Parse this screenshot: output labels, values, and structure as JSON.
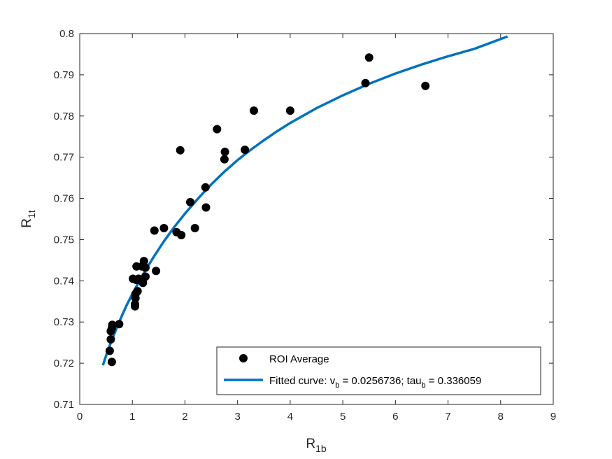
{
  "chart_data": {
    "type": "scatter",
    "title": "",
    "xlabel": {
      "main": "R",
      "sub": "1b"
    },
    "ylabel": {
      "main": "R",
      "sub": "1t"
    },
    "xlim": [
      0,
      9
    ],
    "ylim": [
      0.71,
      0.8
    ],
    "xticks": [
      0,
      1,
      2,
      3,
      4,
      5,
      6,
      7,
      8,
      9
    ],
    "xtick_labels": [
      "0",
      "1",
      "2",
      "3",
      "4",
      "5",
      "6",
      "7",
      "8",
      "9"
    ],
    "yticks": [
      0.71,
      0.72,
      0.73,
      0.74,
      0.75,
      0.76,
      0.77,
      0.78,
      0.79,
      0.8
    ],
    "ytick_labels": [
      "0.71",
      "0.72",
      "0.73",
      "0.74",
      "0.75",
      "0.76",
      "0.77",
      "0.78",
      "0.79",
      "0.8"
    ],
    "grid": false,
    "legend_position": "bottom-right",
    "colors": {
      "points": "#000000",
      "curve": "#0072BD",
      "axes": "#262626"
    },
    "series": [
      {
        "name": "ROI Average",
        "kind": "points",
        "points": [
          [
            0.57,
            0.723
          ],
          [
            0.59,
            0.7258
          ],
          [
            0.59,
            0.7278
          ],
          [
            0.61,
            0.7203
          ],
          [
            0.61,
            0.7285
          ],
          [
            0.62,
            0.7293
          ],
          [
            0.75,
            0.7295
          ],
          [
            1.01,
            0.7405
          ],
          [
            1.05,
            0.7338
          ],
          [
            1.05,
            0.7343
          ],
          [
            1.06,
            0.7358
          ],
          [
            1.06,
            0.7368
          ],
          [
            1.08,
            0.7435
          ],
          [
            1.08,
            0.7402
          ],
          [
            1.1,
            0.7375
          ],
          [
            1.12,
            0.7405
          ],
          [
            1.18,
            0.7435
          ],
          [
            1.2,
            0.7395
          ],
          [
            1.22,
            0.7448
          ],
          [
            1.25,
            0.741
          ],
          [
            1.25,
            0.7432
          ],
          [
            1.42,
            0.7522
          ],
          [
            1.45,
            0.7424
          ],
          [
            1.6,
            0.7528
          ],
          [
            1.84,
            0.7518
          ],
          [
            1.91,
            0.7717
          ],
          [
            1.93,
            0.7511
          ],
          [
            2.1,
            0.7591
          ],
          [
            2.19,
            0.7528
          ],
          [
            2.39,
            0.7627
          ],
          [
            2.4,
            0.7578
          ],
          [
            2.61,
            0.7768
          ],
          [
            2.75,
            0.7695
          ],
          [
            2.76,
            0.7713
          ],
          [
            3.14,
            0.7718
          ],
          [
            3.31,
            0.7813
          ],
          [
            4.0,
            0.7813
          ],
          [
            5.43,
            0.788
          ],
          [
            5.5,
            0.7942
          ],
          [
            6.57,
            0.7873
          ]
        ]
      },
      {
        "name": "Fitted curve",
        "legend_parts": [
          "Fitted curve: v",
          "b",
          " = 0.0256736; tau",
          "b",
          " = 0.336059"
        ],
        "kind": "line",
        "points": [
          [
            0.44,
            0.7195
          ],
          [
            0.5,
            0.7218
          ],
          [
            0.6,
            0.7253
          ],
          [
            0.7,
            0.7285
          ],
          [
            0.8,
            0.7315
          ],
          [
            0.9,
            0.7343
          ],
          [
            1.0,
            0.7368
          ],
          [
            1.2,
            0.7415
          ],
          [
            1.4,
            0.7457
          ],
          [
            1.6,
            0.7496
          ],
          [
            1.8,
            0.7531
          ],
          [
            2.0,
            0.7563
          ],
          [
            2.25,
            0.76
          ],
          [
            2.5,
            0.7634
          ],
          [
            2.75,
            0.7665
          ],
          [
            3.0,
            0.7693
          ],
          [
            3.25,
            0.7718
          ],
          [
            3.5,
            0.7741
          ],
          [
            3.75,
            0.7763
          ],
          [
            4.0,
            0.7783
          ],
          [
            4.5,
            0.7819
          ],
          [
            5.0,
            0.785
          ],
          [
            5.5,
            0.7878
          ],
          [
            6.0,
            0.7903
          ],
          [
            6.5,
            0.7925
          ],
          [
            7.0,
            0.7945
          ],
          [
            7.5,
            0.7963
          ],
          [
            8.13,
            0.7993
          ]
        ]
      }
    ]
  }
}
